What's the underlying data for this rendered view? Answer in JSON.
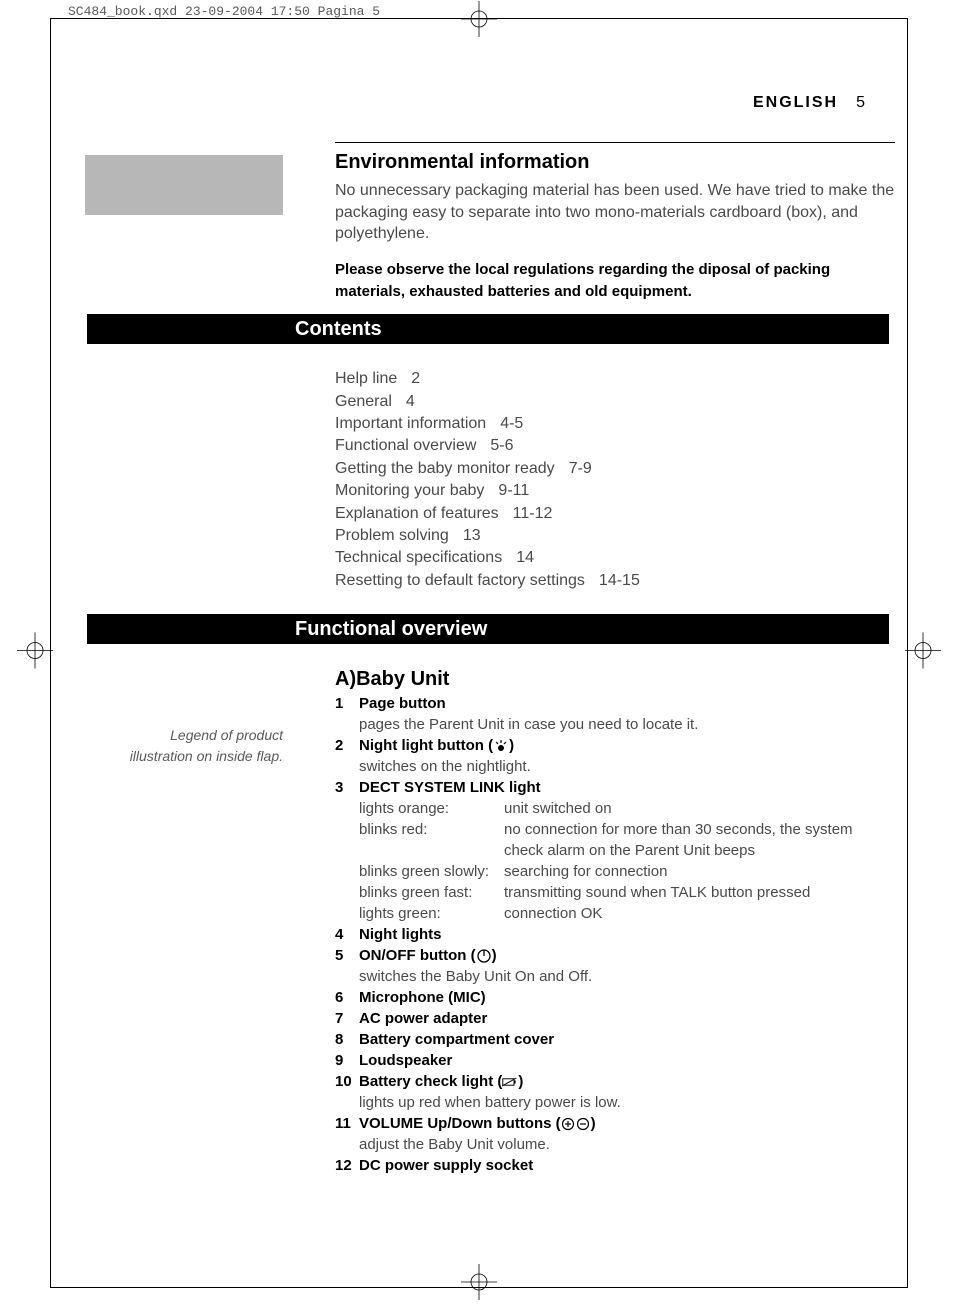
{
  "print_marks": {
    "filename_line": "SC484_book.qxd  23-09-2004  17:50  Pagina 5"
  },
  "header": {
    "language": "ENGLISH",
    "page_number": "5"
  },
  "section_environmental": {
    "title": "Environmental information",
    "body": "No unnecessary packaging material has been used. We have tried to make the packaging easy to separate into two mono-materials cardboard (box), and polyethylene.",
    "bold_notice": "Please observe the local regulations regarding the diposal of packing materials, exhausted batteries and old equipment."
  },
  "section_contents": {
    "title": "Contents",
    "items": [
      {
        "label": "Help line",
        "pages": "2"
      },
      {
        "label": "General",
        "pages": "4"
      },
      {
        "label": "Important information",
        "pages": "4-5"
      },
      {
        "label": "Functional overview",
        "pages": "5-6"
      },
      {
        "label": "Getting the baby monitor ready",
        "pages": "7-9"
      },
      {
        "label": "Monitoring your baby",
        "pages": "9-11"
      },
      {
        "label": "Explanation of features",
        "pages": "11-12"
      },
      {
        "label": "Problem solving",
        "pages": "13"
      },
      {
        "label": "Technical specifications",
        "pages": "14"
      },
      {
        "label": "Resetting to default factory settings",
        "pages": "14-15"
      }
    ]
  },
  "section_functional": {
    "title": "Functional overview",
    "side_caption": "Legend of product illustration on inside flap.",
    "subtitle": "A)Baby Unit",
    "items": [
      {
        "num": "1",
        "label": "Page button",
        "desc": "pages the Parent Unit in case you need to locate it."
      },
      {
        "num": "2",
        "label_pre": "Night light button (",
        "label_post": ")",
        "icon": "nightlight",
        "desc": "switches on the nightlight."
      },
      {
        "num": "3",
        "label": "DECT SYSTEM LINK light"
      },
      {
        "num": "4",
        "label": "Night lights"
      },
      {
        "num": "5",
        "label_pre": "ON/OFF button (",
        "label_post": ")",
        "icon": "power",
        "desc": "switches the Baby Unit On and Off."
      },
      {
        "num": "6",
        "label": "Microphone (MIC)"
      },
      {
        "num": "7",
        "label": "AC power adapter"
      },
      {
        "num": "8",
        "label": "Battery compartment cover"
      },
      {
        "num": "9",
        "label": "Loudspeaker"
      },
      {
        "num": "10",
        "label_pre": "Battery check light (",
        "label_post": ")",
        "icon": "battery",
        "desc": "lights up red when battery power is low."
      },
      {
        "num": "11",
        "label_pre": "VOLUME Up/Down buttons (",
        "label_post": ")",
        "icon": "plusminus",
        "desc": "adjust the Baby Unit volume."
      },
      {
        "num": "12",
        "label": "DC power supply socket"
      }
    ],
    "dect_states": [
      {
        "state": "lights orange:",
        "meaning": "unit switched on"
      },
      {
        "state": "blinks red:",
        "meaning": "no connection for more than 30 seconds, the system check alarm on the Parent Unit beeps"
      },
      {
        "state": "blinks green slowly:",
        "meaning": "searching for connection"
      },
      {
        "state": "blinks green fast:",
        "meaning": "transmitting sound when TALK button pressed"
      },
      {
        "state": "lights green:",
        "meaning": "connection OK"
      }
    ]
  },
  "colors": {
    "grey_sidebar": "#b7b7b7",
    "body_text": "#4a4a4a",
    "heading": "#000000",
    "black_bar": "#000000"
  }
}
